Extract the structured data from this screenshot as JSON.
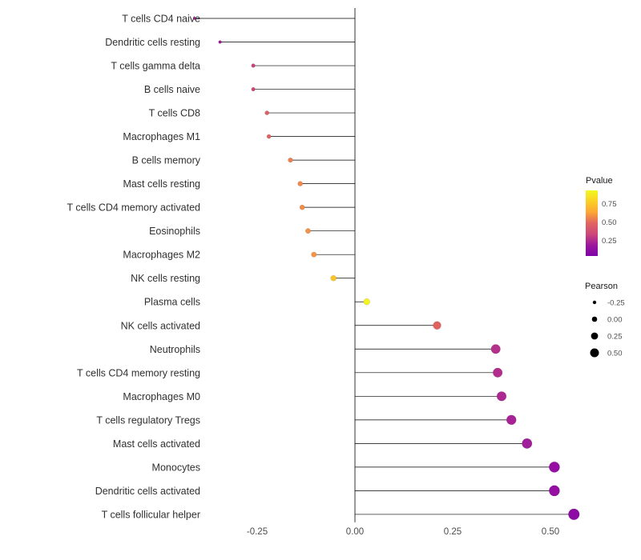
{
  "chart_data": {
    "type": "lollipop",
    "title": "",
    "xlabel": "",
    "ylabel": "",
    "xlim": [
      -0.45,
      0.62
    ],
    "x_ticks": [
      -0.25,
      0.0,
      0.25,
      0.5
    ],
    "x_tick_labels": [
      "-0.25",
      "0.00",
      "0.25",
      "0.50"
    ],
    "grid": "off",
    "points": [
      {
        "category": "T cells CD4 naive",
        "pearson": -0.41,
        "pvalue_color": "#a21a9b"
      },
      {
        "category": "Dendritic cells resting",
        "pearson": -0.345,
        "pvalue_color": "#9f199d"
      },
      {
        "category": "T cells gamma delta",
        "pearson": -0.26,
        "pvalue_color": "#c8457b"
      },
      {
        "category": "B cells naive",
        "pearson": -0.26,
        "pvalue_color": "#cc4778"
      },
      {
        "category": "T cells CD8",
        "pearson": -0.225,
        "pvalue_color": "#e05f66"
      },
      {
        "category": "Macrophages M1",
        "pearson": -0.22,
        "pvalue_color": "#e16462"
      },
      {
        "category": "B cells memory",
        "pearson": -0.165,
        "pvalue_color": "#ef7e4f"
      },
      {
        "category": "Mast cells resting",
        "pearson": -0.14,
        "pvalue_color": "#f2884a"
      },
      {
        "category": "T cells CD4 memory activated",
        "pearson": -0.135,
        "pvalue_color": "#f38c47"
      },
      {
        "category": "Eosinophils",
        "pearson": -0.12,
        "pvalue_color": "#f59144"
      },
      {
        "category": "Macrophages M2",
        "pearson": -0.105,
        "pvalue_color": "#f79342"
      },
      {
        "category": "NK cells resting",
        "pearson": -0.055,
        "pvalue_color": "#fdc627"
      },
      {
        "category": "Plasma cells",
        "pearson": 0.03,
        "pvalue_color": "#f4f423"
      },
      {
        "category": "NK cells activated",
        "pearson": 0.21,
        "pvalue_color": "#e0625f"
      },
      {
        "category": "Neutrophils",
        "pearson": 0.36,
        "pvalue_color": "#b52f8c"
      },
      {
        "category": "T cells CD4 memory resting",
        "pearson": 0.365,
        "pvalue_color": "#b22d8e"
      },
      {
        "category": "Macrophages M0",
        "pearson": 0.375,
        "pvalue_color": "#ae2892"
      },
      {
        "category": "T cells regulatory  Tregs",
        "pearson": 0.4,
        "pvalue_color": "#a82296"
      },
      {
        "category": "Mast cells activated",
        "pearson": 0.44,
        "pvalue_color": "#a01d9b"
      },
      {
        "category": "Monocytes",
        "pearson": 0.51,
        "pvalue_color": "#950fa3"
      },
      {
        "category": "Dendritic cells activated",
        "pearson": 0.51,
        "pvalue_color": "#950fa3"
      },
      {
        "category": "T cells follicular helper",
        "pearson": 0.56,
        "pvalue_color": "#8d0ba4"
      }
    ],
    "legend_pvalue": {
      "title": "Pvalue",
      "tick_labels": [
        "0.75",
        "0.50",
        "0.25"
      ],
      "gradient": [
        "#f0f921",
        "#fcce25",
        "#fca636",
        "#e16462",
        "#cc4778",
        "#9c179e",
        "#7e03a8"
      ]
    },
    "legend_pearson": {
      "title": "Pearson",
      "items": [
        {
          "label": "-0.25",
          "r": 2.2
        },
        {
          "label": "0.00",
          "r": 3.3
        },
        {
          "label": "0.25",
          "r": 4.4
        },
        {
          "label": "0.50",
          "r": 5.5
        }
      ]
    },
    "colors": {
      "stem": "#000000",
      "axis_text": "#4d4d4d",
      "category_text": "#303030",
      "legend_title_text": "#1a1a1a",
      "background": "#ffffff"
    }
  }
}
